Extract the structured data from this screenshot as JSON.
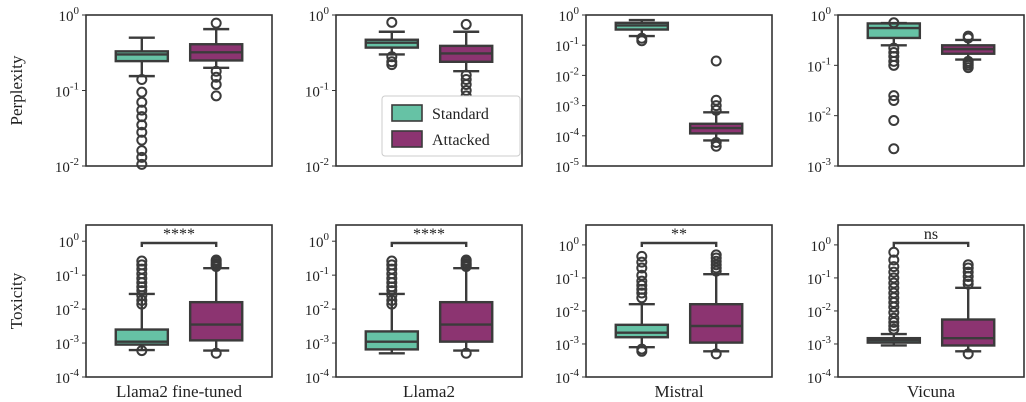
{
  "colors": {
    "standard": "#66c2a5",
    "attacked": "#8c3471",
    "edge": "#3b3b3b",
    "frame": "#333333"
  },
  "legend": {
    "placement": "lower-left inside Llama2 perplexity panel",
    "items": [
      "Standard",
      "Attacked"
    ]
  },
  "chart_data": [
    {
      "type": "box",
      "row": 0,
      "col": 0,
      "ylabel": "Perplexity",
      "xlabel": "",
      "yscale": "log",
      "ylim": [
        0.01,
        1
      ],
      "ticks": [
        -2,
        -1,
        0
      ],
      "significance": "",
      "series": [
        {
          "name": "Standard",
          "q1": 0.245,
          "median": 0.3,
          "q3": 0.33,
          "whisker_low": 0.155,
          "whisker_high": 0.5,
          "outliers": [
            0.14,
            0.095,
            0.07,
            0.055,
            0.045,
            0.035,
            0.028,
            0.022,
            0.016,
            0.013,
            0.0105
          ]
        },
        {
          "name": "Attacked",
          "q1": 0.25,
          "median": 0.32,
          "q3": 0.41,
          "whisker_low": 0.2,
          "whisker_high": 0.65,
          "outliers": [
            0.78,
            0.18,
            0.15,
            0.12,
            0.085
          ]
        }
      ]
    },
    {
      "type": "box",
      "row": 0,
      "col": 1,
      "ylabel": "",
      "xlabel": "",
      "yscale": "log",
      "ylim": [
        0.01,
        1
      ],
      "ticks": [
        -2,
        -1,
        0
      ],
      "significance": "",
      "series": [
        {
          "name": "Standard",
          "q1": 0.37,
          "median": 0.43,
          "q3": 0.47,
          "whisker_low": 0.3,
          "whisker_high": 0.6,
          "outliers": [
            0.8,
            0.28,
            0.24,
            0.22
          ]
        },
        {
          "name": "Attacked",
          "q1": 0.24,
          "median": 0.31,
          "q3": 0.39,
          "whisker_low": 0.18,
          "whisker_high": 0.6,
          "outliers": [
            0.75,
            0.16,
            0.14,
            0.12,
            0.1,
            0.085
          ]
        }
      ]
    },
    {
      "type": "box",
      "row": 0,
      "col": 2,
      "ylabel": "",
      "xlabel": "",
      "yscale": "log",
      "ylim": [
        1e-05,
        1
      ],
      "ticks": [
        -5,
        -4,
        -3,
        -2,
        -1,
        0
      ],
      "significance": "",
      "series": [
        {
          "name": "Standard",
          "q1": 0.33,
          "median": 0.45,
          "q3": 0.55,
          "whisker_low": 0.2,
          "whisker_high": 0.68,
          "outliers": [
            0.17,
            0.14
          ]
        },
        {
          "name": "Attacked",
          "q1": 0.00012,
          "median": 0.00018,
          "q3": 0.00025,
          "whisker_low": 7e-05,
          "whisker_high": 0.0006,
          "outliers": [
            0.03,
            0.0015,
            0.001,
            0.0007,
            6e-05,
            4.5e-05
          ]
        }
      ]
    },
    {
      "type": "box",
      "row": 0,
      "col": 3,
      "ylabel": "",
      "xlabel": "",
      "yscale": "log",
      "ylim": [
        0.001,
        1
      ],
      "ticks": [
        -3,
        -2,
        -1,
        0
      ],
      "significance": "",
      "series": [
        {
          "name": "Standard",
          "q1": 0.35,
          "median": 0.55,
          "q3": 0.68,
          "whisker_low": 0.25,
          "whisker_high": 0.69,
          "outliers": [
            0.7,
            0.22,
            0.18,
            0.15,
            0.12,
            0.1,
            0.025,
            0.02,
            0.008,
            0.0022
          ]
        },
        {
          "name": "Attacked",
          "q1": 0.17,
          "median": 0.21,
          "q3": 0.25,
          "whisker_low": 0.13,
          "whisker_high": 0.32,
          "outliers": [
            0.38,
            0.35,
            0.12,
            0.11,
            0.1,
            0.09
          ]
        }
      ]
    },
    {
      "type": "box",
      "row": 1,
      "col": 0,
      "ylabel": "Toxicity",
      "xlabel": "Llama2 fine-tuned",
      "yscale": "log",
      "ylim": [
        0.0001,
        3
      ],
      "ticks": [
        -4,
        -3,
        -2,
        -1,
        0
      ],
      "significance": "****",
      "series": [
        {
          "name": "Standard",
          "q1": 0.0009,
          "median": 0.0011,
          "q3": 0.0025,
          "whisker_low": 0.00062,
          "whisker_high": 0.028,
          "outliers": [
            0.26,
            0.2,
            0.15,
            0.11,
            0.08,
            0.06,
            0.045,
            0.035,
            0.025,
            0.018,
            0.014,
            0.0006
          ]
        },
        {
          "name": "Attacked",
          "q1": 0.0012,
          "median": 0.0035,
          "q3": 0.016,
          "whisker_low": 0.0006,
          "whisker_high": 0.16,
          "outliers": [
            0.28,
            0.25,
            0.22,
            0.2,
            0.18,
            0.0005
          ]
        }
      ]
    },
    {
      "type": "box",
      "row": 1,
      "col": 1,
      "ylabel": "",
      "xlabel": "Llama2",
      "yscale": "log",
      "ylim": [
        0.0001,
        3
      ],
      "ticks": [
        -4,
        -3,
        -2,
        -1,
        0
      ],
      "significance": "****",
      "series": [
        {
          "name": "Standard",
          "q1": 0.00065,
          "median": 0.0011,
          "q3": 0.0022,
          "whisker_low": 0.0005,
          "whisker_high": 0.028,
          "outliers": [
            0.26,
            0.2,
            0.15,
            0.11,
            0.08,
            0.06,
            0.045,
            0.035,
            0.025,
            0.018,
            0.014
          ]
        },
        {
          "name": "Attacked",
          "q1": 0.0011,
          "median": 0.0035,
          "q3": 0.016,
          "whisker_low": 0.0006,
          "whisker_high": 0.16,
          "outliers": [
            0.28,
            0.25,
            0.22,
            0.2,
            0.18,
            0.0005
          ]
        }
      ]
    },
    {
      "type": "box",
      "row": 1,
      "col": 2,
      "ylabel": "",
      "xlabel": "Mistral",
      "yscale": "log",
      "ylim": [
        0.0001,
        4
      ],
      "ticks": [
        -4,
        -3,
        -2,
        -1,
        0
      ],
      "significance": "**",
      "series": [
        {
          "name": "Standard",
          "q1": 0.0016,
          "median": 0.0022,
          "q3": 0.0038,
          "whisker_low": 0.0008,
          "whisker_high": 0.016,
          "outliers": [
            0.45,
            0.3,
            0.2,
            0.12,
            0.08,
            0.06,
            0.045,
            0.035,
            0.025,
            0.0007,
            0.0006
          ]
        },
        {
          "name": "Attacked",
          "q1": 0.0011,
          "median": 0.0035,
          "q3": 0.016,
          "whisker_low": 0.0006,
          "whisker_high": 0.13,
          "outliers": [
            0.5,
            0.4,
            0.32,
            0.25,
            0.2,
            0.16,
            0.0005
          ]
        }
      ]
    },
    {
      "type": "box",
      "row": 1,
      "col": 3,
      "ylabel": "",
      "xlabel": "Vicuna",
      "yscale": "log",
      "ylim": [
        0.0001,
        4
      ],
      "ticks": [
        -4,
        -3,
        -2,
        -1,
        0
      ],
      "significance": "ns",
      "series": [
        {
          "name": "Standard",
          "q1": 0.0011,
          "median": 0.0013,
          "q3": 0.0015,
          "whisker_low": 0.0009,
          "whisker_high": 0.002,
          "outliers": [
            0.6,
            0.35,
            0.22,
            0.15,
            0.1,
            0.07,
            0.05,
            0.035,
            0.025,
            0.018,
            0.013,
            0.009,
            0.006,
            0.0045,
            0.0035,
            0.0028
          ]
        },
        {
          "name": "Attacked",
          "q1": 0.0009,
          "median": 0.0015,
          "q3": 0.0055,
          "whisker_low": 0.0006,
          "whisker_high": 0.05,
          "outliers": [
            0.25,
            0.2,
            0.15,
            0.11,
            0.08,
            0.065,
            0.0005
          ]
        }
      ]
    }
  ]
}
